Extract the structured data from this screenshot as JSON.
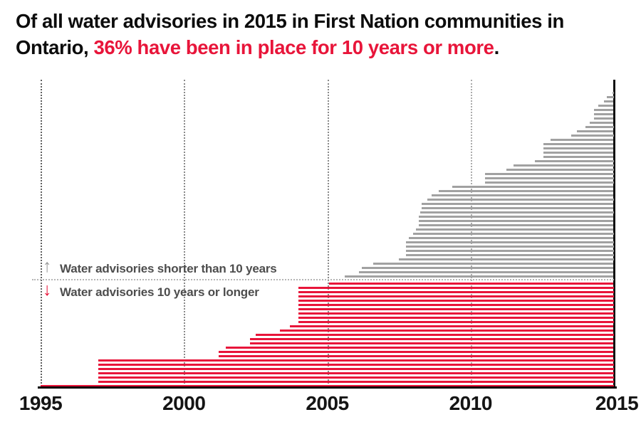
{
  "title": {
    "black_1": "Of all water advisories in 2015 in First Nation communities in Ontario, ",
    "red": "36% have been in place for 10 years or more",
    "black_2": "."
  },
  "legend": {
    "shorter": {
      "arrow": "↑",
      "label": "Water advisories shorter than 10 years"
    },
    "longer": {
      "arrow": "↓",
      "label": "Water advisories 10 years or longer"
    }
  },
  "colors": {
    "red": "#e8153a",
    "gray_bar": "#a1a1a1",
    "legend_text": "#4d4d4d",
    "axis_line": "#000000",
    "year_2015_line": "#111111"
  },
  "chart_data": {
    "type": "bar",
    "variant": "timeline-gantt",
    "title": "Of all water advisories in 2015 in First Nation communities in Ontario, 36% have been in place for 10 years or more.",
    "description": "Each horizontal line is one water advisory, drawn from its start year until 2015. Gray lines above the dotted divider are advisories shorter than 10 years; red lines below it are advisories 10 years or longer.",
    "highlight_stat": "36%",
    "bars_end_at": 2015,
    "x_axis": {
      "min": 1995,
      "max": 2015,
      "tick_years": [
        1995,
        2000,
        2005,
        2010,
        2015
      ],
      "tick_labels": [
        "1995",
        "2000",
        "2005",
        "2010",
        "2015"
      ],
      "gridlines": "dotted vertical at 1995-2010, solid at 2015"
    },
    "series": [
      {
        "name": "Water advisories shorter than 10 years",
        "color": "#a1a1a1",
        "count": 44,
        "start_years": [
          2014.95,
          2014.75,
          2014.65,
          2014.45,
          2014.3,
          2014.3,
          2014.3,
          2014.15,
          2014.0,
          2013.7,
          2013.5,
          2012.8,
          2012.55,
          2012.55,
          2012.55,
          2012.55,
          2012.25,
          2011.5,
          2011.25,
          2010.5,
          2010.5,
          2010.5,
          2009.35,
          2008.9,
          2008.65,
          2008.5,
          2008.3,
          2008.3,
          2008.25,
          2008.2,
          2008.2,
          2008.2,
          2008.1,
          2008.0,
          2007.85,
          2007.75,
          2007.75,
          2007.75,
          2007.75,
          2007.5,
          2006.6,
          2006.2,
          2006.1,
          2005.6
        ]
      },
      {
        "name": "Water advisories 10 years or longer",
        "color": "#e8153a",
        "count": 25,
        "start_years": [
          2005.05,
          2004.0,
          2004.0,
          2004.0,
          2004.0,
          2004.0,
          2004.0,
          2004.0,
          2004.0,
          2004.0,
          2003.7,
          2003.35,
          2002.5,
          2002.3,
          2002.3,
          2001.45,
          2001.2,
          2001.2,
          1997.0,
          1997.0,
          1997.0,
          1997.0,
          1997.0,
          1997.0,
          1995.0
        ]
      }
    ]
  }
}
